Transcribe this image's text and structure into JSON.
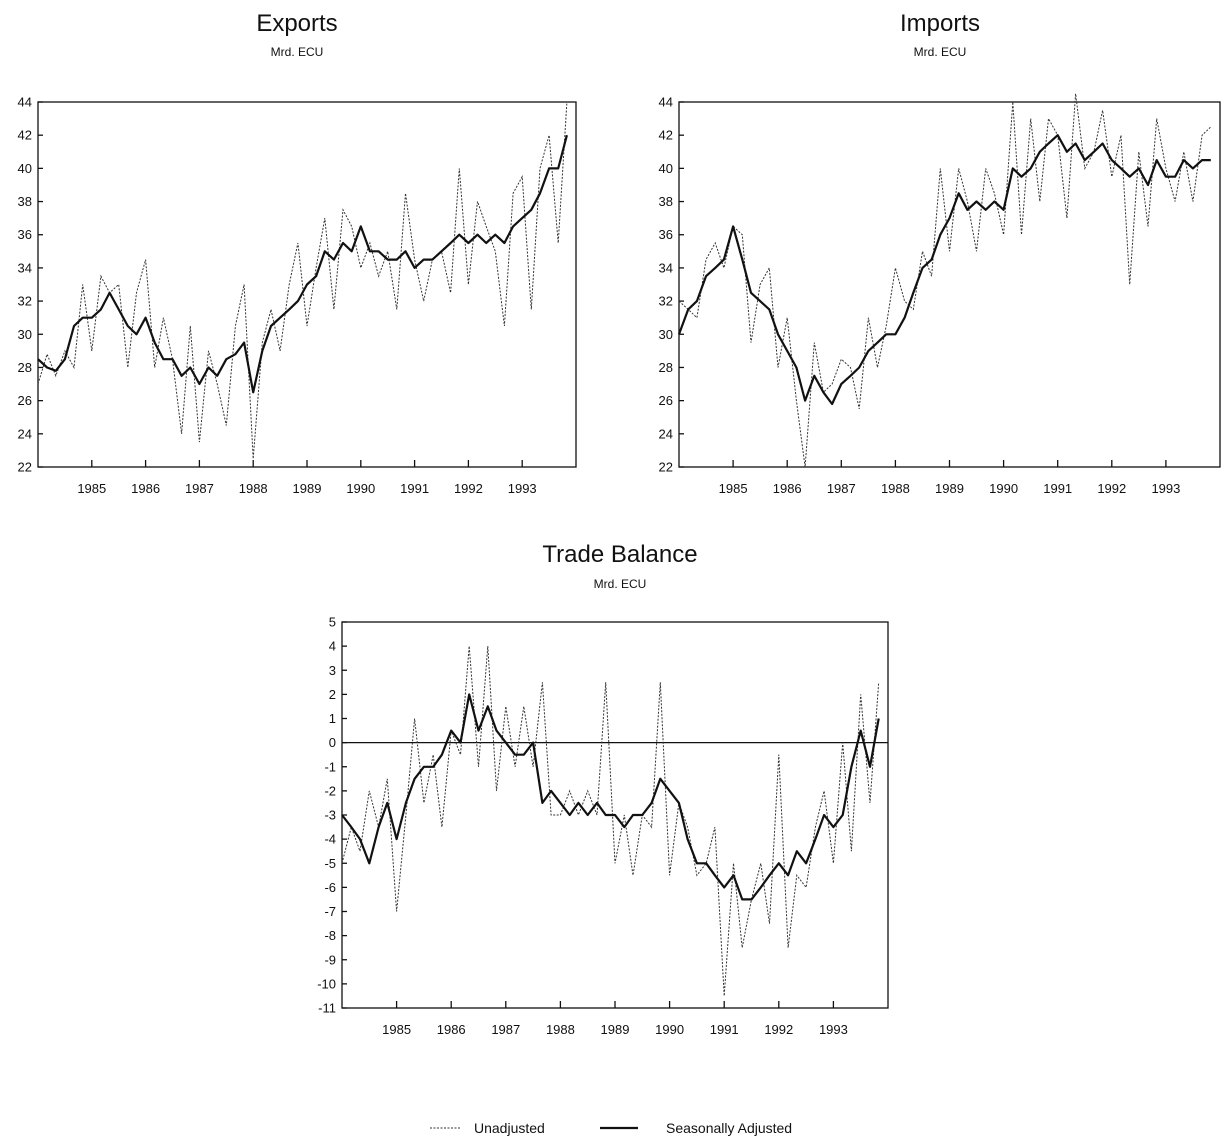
{
  "chart_data": [
    {
      "id": "exports",
      "type": "line",
      "title": "Exports",
      "subtitle": "Mrd. ECU",
      "ylim": [
        22,
        44
      ],
      "yticks": [
        22,
        24,
        26,
        28,
        30,
        32,
        34,
        36,
        38,
        40,
        42,
        44
      ],
      "xlim": [
        1984,
        1994
      ],
      "xticks": [
        1985,
        1986,
        1987,
        1988,
        1989,
        1990,
        1991,
        1992,
        1993
      ],
      "grid": false,
      "series": [
        {
          "name": "Unadjusted",
          "x": [
            1984.0,
            1984.17,
            1984.33,
            1984.5,
            1984.67,
            1984.83,
            1985.0,
            1985.17,
            1985.33,
            1985.5,
            1985.67,
            1985.83,
            1986.0,
            1986.17,
            1986.33,
            1986.5,
            1986.67,
            1986.83,
            1987.0,
            1987.17,
            1987.33,
            1987.5,
            1987.67,
            1987.83,
            1988.0,
            1988.17,
            1988.33,
            1988.5,
            1988.67,
            1988.83,
            1989.0,
            1989.17,
            1989.33,
            1989.5,
            1989.67,
            1989.83,
            1990.0,
            1990.17,
            1990.33,
            1990.5,
            1990.67,
            1990.83,
            1991.0,
            1991.17,
            1991.33,
            1991.5,
            1991.67,
            1991.83,
            1992.0,
            1992.17,
            1992.33,
            1992.5,
            1992.67,
            1992.83,
            1993.0,
            1993.17,
            1993.33,
            1993.5,
            1993.67,
            1993.83
          ],
          "values": [
            27.0,
            28.8,
            27.5,
            29.0,
            28.0,
            33.0,
            29.0,
            33.5,
            32.5,
            33.0,
            28.0,
            32.5,
            34.5,
            28.0,
            31.0,
            28.5,
            24.0,
            30.5,
            23.5,
            29.0,
            27.0,
            24.5,
            30.5,
            33.0,
            22.5,
            29.5,
            31.5,
            29.0,
            33.0,
            35.5,
            30.5,
            34.0,
            37.0,
            31.5,
            37.5,
            36.5,
            34.0,
            35.5,
            33.5,
            35.0,
            31.5,
            38.5,
            34.5,
            32.0,
            34.5,
            35.0,
            32.5,
            40.0,
            33.0,
            38.0,
            36.5,
            35.0,
            30.5,
            38.5,
            39.5,
            31.5,
            40.0,
            42.0,
            35.5,
            44.0
          ]
        },
        {
          "name": "Seasonally Adjusted",
          "x": [
            1984.0,
            1984.17,
            1984.33,
            1984.5,
            1984.67,
            1984.83,
            1985.0,
            1985.17,
            1985.33,
            1985.5,
            1985.67,
            1985.83,
            1986.0,
            1986.17,
            1986.33,
            1986.5,
            1986.67,
            1986.83,
            1987.0,
            1987.17,
            1987.33,
            1987.5,
            1987.67,
            1987.83,
            1988.0,
            1988.17,
            1988.33,
            1988.5,
            1988.67,
            1988.83,
            1989.0,
            1989.17,
            1989.33,
            1989.5,
            1989.67,
            1989.83,
            1990.0,
            1990.17,
            1990.33,
            1990.5,
            1990.67,
            1990.83,
            1991.0,
            1991.17,
            1991.33,
            1991.5,
            1991.67,
            1991.83,
            1992.0,
            1992.17,
            1992.33,
            1992.5,
            1992.67,
            1992.83,
            1993.0,
            1993.17,
            1993.33,
            1993.5,
            1993.67,
            1993.83
          ],
          "values": [
            28.5,
            28.0,
            27.8,
            28.5,
            30.5,
            31.0,
            31.0,
            31.5,
            32.5,
            31.5,
            30.5,
            30.0,
            31.0,
            29.5,
            28.5,
            28.5,
            27.5,
            28.0,
            27.0,
            28.0,
            27.5,
            28.5,
            28.8,
            29.5,
            26.5,
            29.0,
            30.5,
            31.0,
            31.5,
            32.0,
            33.0,
            33.5,
            35.0,
            34.5,
            35.5,
            35.0,
            36.5,
            35.0,
            35.0,
            34.5,
            34.5,
            35.0,
            34.0,
            34.5,
            34.5,
            35.0,
            35.5,
            36.0,
            35.5,
            36.0,
            35.5,
            36.0,
            35.5,
            36.5,
            37.0,
            37.5,
            38.5,
            40.0,
            40.0,
            42.0
          ]
        }
      ]
    },
    {
      "id": "imports",
      "type": "line",
      "title": "Imports",
      "subtitle": "Mrd. ECU",
      "ylim": [
        22,
        44
      ],
      "yticks": [
        22,
        24,
        26,
        28,
        30,
        32,
        34,
        36,
        38,
        40,
        42,
        44
      ],
      "xlim": [
        1984,
        1994
      ],
      "xticks": [
        1985,
        1986,
        1987,
        1988,
        1989,
        1990,
        1991,
        1992,
        1993
      ],
      "grid": false,
      "series": [
        {
          "name": "Unadjusted",
          "x": [
            1984.0,
            1984.17,
            1984.33,
            1984.5,
            1984.67,
            1984.83,
            1985.0,
            1985.17,
            1985.33,
            1985.5,
            1985.67,
            1985.83,
            1986.0,
            1986.17,
            1986.33,
            1986.5,
            1986.67,
            1986.83,
            1987.0,
            1987.17,
            1987.33,
            1987.5,
            1987.67,
            1987.83,
            1988.0,
            1988.17,
            1988.33,
            1988.5,
            1988.67,
            1988.83,
            1989.0,
            1989.17,
            1989.33,
            1989.5,
            1989.67,
            1989.83,
            1990.0,
            1990.17,
            1990.33,
            1990.5,
            1990.67,
            1990.83,
            1991.0,
            1991.17,
            1991.33,
            1991.5,
            1991.67,
            1991.83,
            1992.0,
            1992.17,
            1992.33,
            1992.5,
            1992.67,
            1992.83,
            1993.0,
            1993.17,
            1993.33,
            1993.5,
            1993.67,
            1993.83
          ],
          "values": [
            32.0,
            31.5,
            31.0,
            34.5,
            35.5,
            34.0,
            36.5,
            36.0,
            29.5,
            33.0,
            34.0,
            28.0,
            31.0,
            26.0,
            22.0,
            29.5,
            26.5,
            27.0,
            28.5,
            28.0,
            25.5,
            31.0,
            28.0,
            30.5,
            34.0,
            32.0,
            31.5,
            35.0,
            33.5,
            40.0,
            35.0,
            40.0,
            38.0,
            35.0,
            40.0,
            38.5,
            36.0,
            44.0,
            36.0,
            43.0,
            38.0,
            43.0,
            42.0,
            37.0,
            44.5,
            40.0,
            41.0,
            43.5,
            39.5,
            42.0,
            33.0,
            41.0,
            36.5,
            43.0,
            40.0,
            38.0,
            41.0,
            38.0,
            42.0,
            42.5
          ]
        },
        {
          "name": "Seasonally Adjusted",
          "x": [
            1984.0,
            1984.17,
            1984.33,
            1984.5,
            1984.67,
            1984.83,
            1985.0,
            1985.17,
            1985.33,
            1985.5,
            1985.67,
            1985.83,
            1986.0,
            1986.17,
            1986.33,
            1986.5,
            1986.67,
            1986.83,
            1987.0,
            1987.17,
            1987.33,
            1987.5,
            1987.67,
            1987.83,
            1988.0,
            1988.17,
            1988.33,
            1988.5,
            1988.67,
            1988.83,
            1989.0,
            1989.17,
            1989.33,
            1989.5,
            1989.67,
            1989.83,
            1990.0,
            1990.17,
            1990.33,
            1990.5,
            1990.67,
            1990.83,
            1991.0,
            1991.17,
            1991.33,
            1991.5,
            1991.67,
            1991.83,
            1992.0,
            1992.17,
            1992.33,
            1992.5,
            1992.67,
            1992.83,
            1993.0,
            1993.17,
            1993.33,
            1993.5,
            1993.67,
            1993.83
          ],
          "values": [
            30.0,
            31.5,
            32.0,
            33.5,
            34.0,
            34.5,
            36.5,
            34.5,
            32.5,
            32.0,
            31.5,
            30.0,
            29.0,
            28.0,
            26.0,
            27.5,
            26.5,
            25.8,
            27.0,
            27.5,
            28.0,
            29.0,
            29.5,
            30.0,
            30.0,
            31.0,
            32.5,
            34.0,
            34.5,
            36.0,
            37.0,
            38.5,
            37.5,
            38.0,
            37.5,
            38.0,
            37.5,
            40.0,
            39.5,
            40.0,
            41.0,
            41.5,
            42.0,
            41.0,
            41.5,
            40.5,
            41.0,
            41.5,
            40.5,
            40.0,
            39.5,
            40.0,
            39.0,
            40.5,
            39.5,
            39.5,
            40.5,
            40.0,
            40.5,
            40.5
          ]
        }
      ]
    },
    {
      "id": "trade-balance",
      "type": "line",
      "title": "Trade Balance",
      "subtitle": "Mrd. ECU",
      "ylim": [
        -11,
        5
      ],
      "yticks": [
        -11,
        -10,
        -9,
        -8,
        -7,
        -6,
        -5,
        -4,
        -3,
        -2,
        -1,
        0,
        1,
        2,
        3,
        4,
        5
      ],
      "xlim": [
        1984,
        1994
      ],
      "xticks": [
        1985,
        1986,
        1987,
        1988,
        1989,
        1990,
        1991,
        1992,
        1993
      ],
      "grid": false,
      "zero_line": true,
      "series": [
        {
          "name": "Unadjusted",
          "x": [
            1984.0,
            1984.17,
            1984.33,
            1984.5,
            1984.67,
            1984.83,
            1985.0,
            1985.17,
            1985.33,
            1985.5,
            1985.67,
            1985.83,
            1986.0,
            1986.17,
            1986.33,
            1986.5,
            1986.67,
            1986.83,
            1987.0,
            1987.17,
            1987.33,
            1987.5,
            1987.67,
            1987.83,
            1988.0,
            1988.17,
            1988.33,
            1988.5,
            1988.67,
            1988.83,
            1989.0,
            1989.17,
            1989.33,
            1989.5,
            1989.67,
            1989.83,
            1990.0,
            1990.17,
            1990.33,
            1990.5,
            1990.67,
            1990.83,
            1991.0,
            1991.17,
            1991.33,
            1991.5,
            1991.67,
            1991.83,
            1992.0,
            1992.17,
            1992.33,
            1992.5,
            1992.67,
            1992.83,
            1993.0,
            1993.17,
            1993.33,
            1993.5,
            1993.67,
            1993.83
          ],
          "values": [
            -5.0,
            -3.5,
            -4.5,
            -2.0,
            -3.5,
            -1.5,
            -7.0,
            -3.0,
            1.0,
            -2.5,
            -0.5,
            -3.5,
            0.5,
            -0.5,
            4.0,
            -1.0,
            4.0,
            -2.0,
            1.5,
            -1.0,
            1.5,
            -1.0,
            2.5,
            -3.0,
            -3.0,
            -2.0,
            -3.0,
            -2.0,
            -3.0,
            2.5,
            -5.0,
            -3.0,
            -5.5,
            -3.0,
            -3.5,
            2.5,
            -5.5,
            -2.5,
            -3.5,
            -5.5,
            -5.0,
            -3.5,
            -10.5,
            -5.0,
            -8.5,
            -6.5,
            -5.0,
            -7.5,
            -0.5,
            -8.5,
            -5.5,
            -6.0,
            -3.5,
            -2.0,
            -5.0,
            0.0,
            -4.5,
            2.0,
            -2.5,
            2.5
          ]
        },
        {
          "name": "Seasonally Adjusted",
          "x": [
            1984.0,
            1984.17,
            1984.33,
            1984.5,
            1984.67,
            1984.83,
            1985.0,
            1985.17,
            1985.33,
            1985.5,
            1985.67,
            1985.83,
            1986.0,
            1986.17,
            1986.33,
            1986.5,
            1986.67,
            1986.83,
            1987.0,
            1987.17,
            1987.33,
            1987.5,
            1987.67,
            1987.83,
            1988.0,
            1988.17,
            1988.33,
            1988.5,
            1988.67,
            1988.83,
            1989.0,
            1989.17,
            1989.33,
            1989.5,
            1989.67,
            1989.83,
            1990.0,
            1990.17,
            1990.33,
            1990.5,
            1990.67,
            1990.83,
            1991.0,
            1991.17,
            1991.33,
            1991.5,
            1991.67,
            1991.83,
            1992.0,
            1992.17,
            1992.33,
            1992.5,
            1992.67,
            1992.83,
            1993.0,
            1993.17,
            1993.33,
            1993.5,
            1993.67,
            1993.83
          ],
          "values": [
            -3.0,
            -3.5,
            -4.0,
            -5.0,
            -3.5,
            -2.5,
            -4.0,
            -2.5,
            -1.5,
            -1.0,
            -1.0,
            -0.5,
            0.5,
            0.0,
            2.0,
            0.5,
            1.5,
            0.5,
            0.0,
            -0.5,
            -0.5,
            0.0,
            -2.5,
            -2.0,
            -2.5,
            -3.0,
            -2.5,
            -3.0,
            -2.5,
            -3.0,
            -3.0,
            -3.5,
            -3.0,
            -3.0,
            -2.5,
            -1.5,
            -2.0,
            -2.5,
            -4.0,
            -5.0,
            -5.0,
            -5.5,
            -6.0,
            -5.5,
            -6.5,
            -6.5,
            -6.0,
            -5.5,
            -5.0,
            -5.5,
            -4.5,
            -5.0,
            -4.0,
            -3.0,
            -3.5,
            -3.0,
            -1.0,
            0.5,
            -1.0,
            1.0
          ]
        }
      ]
    }
  ],
  "legend": {
    "placement": "bottom-center",
    "items": [
      {
        "label": "Unadjusted",
        "style": "dotted"
      },
      {
        "label": "Seasonally Adjusted",
        "style": "solid-thick"
      }
    ]
  }
}
